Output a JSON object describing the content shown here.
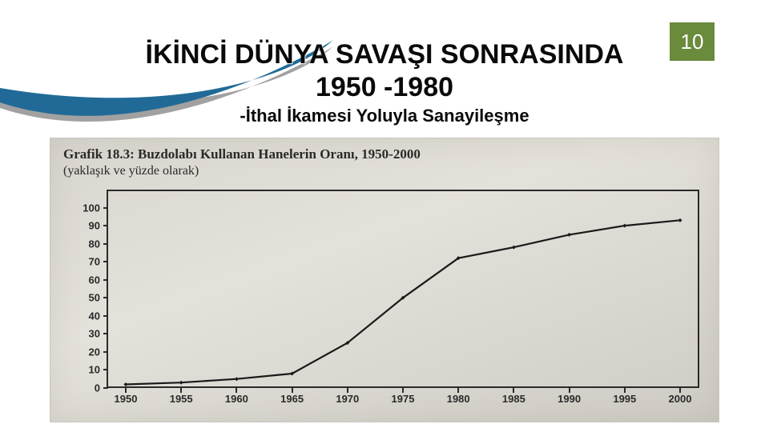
{
  "page_number": "10",
  "title_line1": "İKİNCİ DÜNYA SAVAŞI SONRASINDA",
  "title_line2": "1950 -1980",
  "subtitle": "-İthal İkamesi Yoluyla Sanayileşme",
  "chart": {
    "type": "line",
    "caption_line1": "Grafik 18.3: Buzdolabı Kullanan Hanelerin Oranı, 1950-2000",
    "caption_line2": "(yaklaşık ve yüzde olarak)",
    "x_labels": [
      "1950",
      "1955",
      "1960",
      "1965",
      "1970",
      "1975",
      "1980",
      "1985",
      "1990",
      "1995",
      "2000"
    ],
    "y_labels": [
      "0",
      "10",
      "20",
      "30",
      "40",
      "50",
      "60",
      "70",
      "80",
      "90",
      "100"
    ],
    "ylim": [
      0,
      110
    ],
    "values": [
      2,
      3,
      5,
      8,
      25,
      50,
      72,
      78,
      85,
      90,
      93
    ],
    "line_color": "#1a1a1a",
    "line_width": 2.2,
    "marker_size": 5,
    "marker_fill": "#1a1a1a",
    "axis_color": "#2a2a2a",
    "plot_bg": "#dedbd3",
    "panel_bg_start": "#d9d6cf",
    "panel_bg_end": "#cfccc5",
    "tick_fontsize": 13,
    "caption_fontsize": 17
  },
  "badge_bg": "#6a8a3c",
  "badge_fg": "#ffffff",
  "swoosh_color": "#0a5a8c",
  "swoosh_shadow": "#2e2e2e"
}
